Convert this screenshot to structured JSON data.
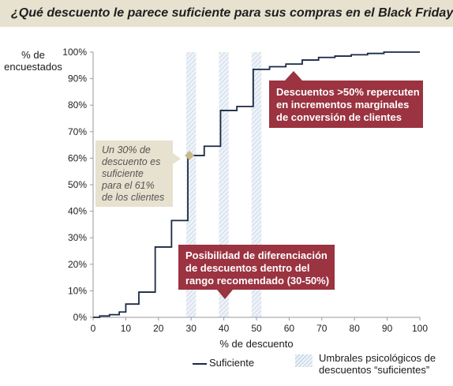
{
  "title": "¿Qué descuento le parece suficiente para sus compras en el Black Friday?",
  "chart_data": {
    "type": "line",
    "step": true,
    "title": "¿Qué descuento le parece suficiente para sus compras en el Black Friday?",
    "ylabel_lines": [
      "% de",
      "encuestados"
    ],
    "xlabel": "% de descuento",
    "xlim": [
      0,
      100
    ],
    "ylim": [
      0,
      100
    ],
    "x_ticks": [
      "0",
      "10",
      "20",
      "30",
      "40",
      "50",
      "60",
      "70",
      "80",
      "90",
      "100"
    ],
    "y_ticks": [
      "0%",
      "10%",
      "20%",
      "30%",
      "40%",
      "50%",
      "60%",
      "70%",
      "80%",
      "90%",
      "100%"
    ],
    "grid": false,
    "series": [
      {
        "name": "Suficiente",
        "color": "#1a2a44",
        "points": [
          [
            0,
            0
          ],
          [
            2,
            0.5
          ],
          [
            5,
            1
          ],
          [
            8,
            2
          ],
          [
            10,
            5
          ],
          [
            14,
            9.5
          ],
          [
            19,
            26.5
          ],
          [
            24,
            36.5
          ],
          [
            29,
            61
          ],
          [
            34,
            64.5
          ],
          [
            39,
            78
          ],
          [
            44,
            79.5
          ],
          [
            49,
            93.5
          ],
          [
            54,
            94.5
          ],
          [
            59,
            95.5
          ],
          [
            64,
            97
          ],
          [
            69,
            98
          ],
          [
            74,
            98.5
          ],
          [
            79,
            99
          ],
          [
            84,
            99.5
          ],
          [
            89,
            100
          ],
          [
            100,
            100
          ]
        ]
      }
    ],
    "threshold_bands": [
      {
        "from": 28.5,
        "to": 31.5
      },
      {
        "from": 38.5,
        "to": 41.5
      },
      {
        "from": 48.5,
        "to": 51.5
      }
    ],
    "highlight_point": {
      "x": 29.5,
      "y": 61,
      "color": "#c8b98a"
    },
    "legend": {
      "placement": "bottom",
      "line_label": "Suficiente",
      "band_label_lines": [
        "Umbrales psicológicos de",
        "descuentos “suficientes”"
      ]
    },
    "annotations": {
      "beige_lines": [
        "Un 30% de",
        "descuento es",
        "suficiente",
        "para el 61%",
        "de los clientes"
      ],
      "red_top_lines": [
        "Descuentos >50% repercuten",
        "en incrementos marginales",
        "de conversión de clientes"
      ],
      "red_bottom_lines": [
        "Posibilidad de diferenciación",
        "de descuentos dentro del",
        "rango recomendado (30-50%)"
      ]
    }
  },
  "colors": {
    "title_background": "#e7e1cf",
    "callout_red": "#9b3340",
    "callout_beige": "#e7e1cf",
    "band_hatch": "#c5d4e6",
    "line": "#1a2a44"
  }
}
